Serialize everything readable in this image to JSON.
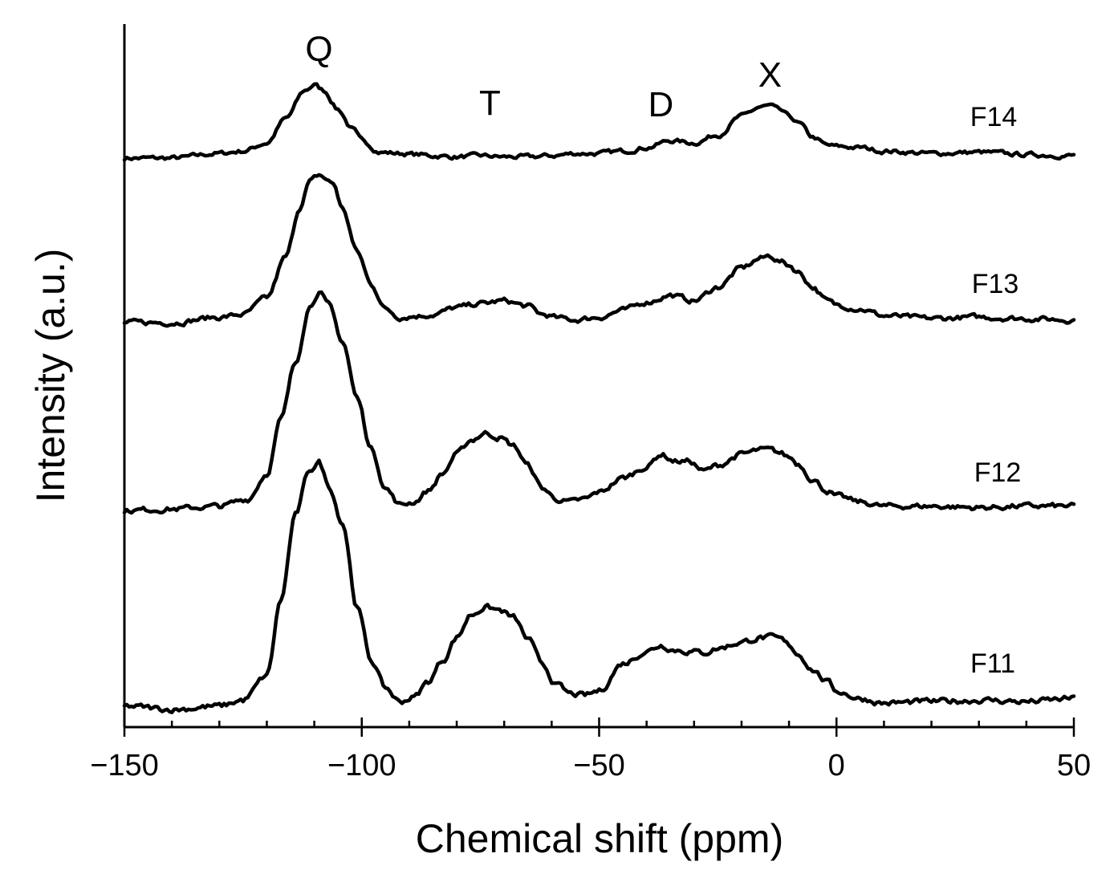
{
  "chart_data": {
    "type": "line",
    "xlabel": "Chemical shift (ppm)",
    "ylabel": "Intensity (a.u.)",
    "xlim": [
      -150,
      50
    ],
    "xticks": [
      -150,
      -100,
      -50,
      0,
      50
    ],
    "xtick_labels": [
      "−150",
      "−100",
      "−50",
      "0",
      "50"
    ],
    "grid": false,
    "legend": "none",
    "peak_labels": [
      {
        "text": "Q",
        "x": -109
      },
      {
        "text": "T",
        "x": -73
      },
      {
        "text": "D",
        "x": -37
      },
      {
        "text": "X",
        "x": -14
      }
    ],
    "series": [
      {
        "name": "F14",
        "x": [
          -150,
          -140,
          -130,
          -125,
          -120,
          -116,
          -112,
          -110,
          -108,
          -105,
          -102,
          -100,
          -96,
          -92,
          -88,
          -85,
          -80,
          -75,
          -70,
          -65,
          -60,
          -55,
          -50,
          -45,
          -40,
          -35,
          -30,
          -25,
          -20,
          -16,
          -14,
          -12,
          -10,
          -8,
          -5,
          -2,
          0,
          5,
          10,
          20,
          30,
          40,
          50
        ],
        "y": [
          0,
          0,
          0.4,
          0.6,
          1.3,
          3.4,
          5.8,
          6.3,
          5.8,
          4.2,
          2.5,
          1.5,
          0.5,
          0.4,
          0.3,
          0.2,
          0.1,
          0.2,
          0.1,
          0.1,
          0.2,
          0.4,
          0.4,
          0.6,
          0.9,
          1.5,
          1.3,
          2.0,
          3.6,
          4.4,
          4.5,
          4.1,
          3.6,
          3.0,
          1.8,
          1.1,
          1.0,
          0.9,
          0.6,
          0.4,
          0.5,
          0.3,
          0.2
        ]
      },
      {
        "name": "F13",
        "x": [
          -150,
          -140,
          -130,
          -125,
          -120,
          -116,
          -113,
          -111,
          -109,
          -106,
          -104,
          -101,
          -98,
          -95,
          -92,
          -88,
          -85,
          -80,
          -75,
          -70,
          -65,
          -62,
          -58,
          -55,
          -50,
          -45,
          -40,
          -35,
          -30,
          -25,
          -20,
          -16,
          -14,
          -12,
          -10,
          -8,
          -5,
          -2,
          0,
          5,
          10,
          20,
          30,
          40,
          50
        ],
        "y": [
          0,
          0,
          0.4,
          0.6,
          1.8,
          4.8,
          8.5,
          10.3,
          10.8,
          10.2,
          8.3,
          5.2,
          2.8,
          1.0,
          0.4,
          0.5,
          0.6,
          1.1,
          1.4,
          1.6,
          1.2,
          0.6,
          0.3,
          0.2,
          0.4,
          0.9,
          1.5,
          2.0,
          1.6,
          2.6,
          4.0,
          4.7,
          4.9,
          4.5,
          4.2,
          3.7,
          2.6,
          1.6,
          1.3,
          1.0,
          0.5,
          0.3,
          0.4,
          0.3,
          0.2
        ]
      },
      {
        "name": "F12",
        "x": [
          -150,
          -140,
          -130,
          -124,
          -120,
          -117,
          -114,
          -111,
          -109,
          -107,
          -104,
          -101,
          -98,
          -95,
          -92,
          -89,
          -86,
          -83,
          -80,
          -77,
          -74,
          -71,
          -68,
          -65,
          -62,
          -59,
          -56,
          -53,
          -50,
          -45,
          -40,
          -37,
          -34,
          -31,
          -28,
          -25,
          -20,
          -16,
          -14,
          -12,
          -10,
          -8,
          -5,
          -2,
          0,
          5,
          10,
          20,
          30,
          40,
          50
        ],
        "y": [
          0,
          0.1,
          0.3,
          0.8,
          2.6,
          6.5,
          10.5,
          14.5,
          15.6,
          14.6,
          12.0,
          8.0,
          4.4,
          1.6,
          0.4,
          0.6,
          1.4,
          2.6,
          4.0,
          5.0,
          5.5,
          5.2,
          4.6,
          3.2,
          1.6,
          0.8,
          0.6,
          0.8,
          1.3,
          2.3,
          3.1,
          4.0,
          3.5,
          3.5,
          2.8,
          3.2,
          4.0,
          4.3,
          4.3,
          4.1,
          3.8,
          3.3,
          2.2,
          1.4,
          1.0,
          0.6,
          0.3,
          0.3,
          0.2,
          0.3,
          0.3
        ]
      },
      {
        "name": "F11",
        "x": [
          -150,
          -140,
          -130,
          -125,
          -120,
          -117,
          -114,
          -111,
          -109,
          -107,
          -104,
          -101,
          -98,
          -95,
          -92,
          -89,
          -86,
          -83,
          -80,
          -77,
          -74,
          -71,
          -68,
          -65,
          -62,
          -59,
          -56,
          -53,
          -50,
          -45,
          -40,
          -37,
          -34,
          -31,
          -28,
          -25,
          -20,
          -16,
          -14,
          -12,
          -10,
          -8,
          -5,
          -2,
          0,
          5,
          10,
          20,
          30,
          40,
          50
        ],
        "y": [
          0,
          -0.2,
          0,
          0.4,
          2.0,
          7.0,
          12.5,
          15.5,
          16.0,
          14.5,
          12.0,
          6.5,
          3.0,
          1.2,
          0.3,
          0.6,
          1.6,
          3.0,
          4.5,
          6.0,
          6.5,
          6.3,
          5.8,
          4.4,
          2.8,
          1.4,
          0.8,
          0.7,
          1.0,
          2.8,
          3.6,
          4.0,
          3.7,
          3.6,
          3.5,
          3.8,
          4.2,
          4.5,
          4.5,
          4.4,
          4.0,
          3.4,
          2.4,
          1.6,
          1.0,
          0.5,
          0.2,
          0.3,
          0.4,
          0.3,
          0.5
        ]
      }
    ]
  }
}
